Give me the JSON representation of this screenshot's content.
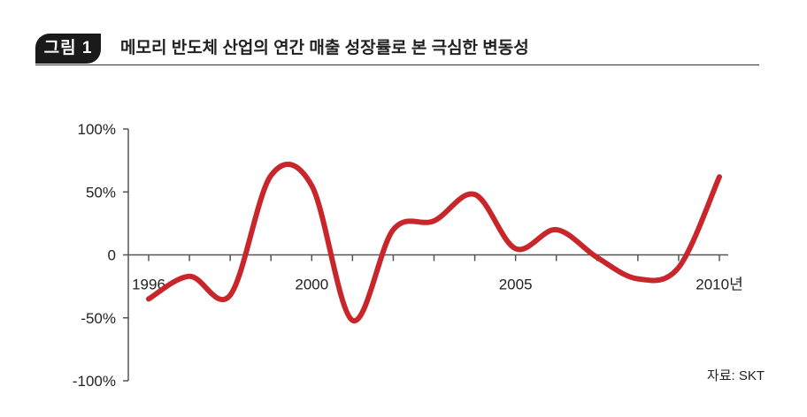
{
  "figure": {
    "label": "그림 1",
    "title": "메모리 반도체 산업의 연간 매출 성장률로 본 극심한 변동성"
  },
  "source": "자료: SKT",
  "chart_data": {
    "type": "line",
    "title": "",
    "xlabel": "",
    "ylabel": "",
    "x_tick_labels": [
      {
        "year": 1996,
        "label": "1996"
      },
      {
        "year": 2000,
        "label": "2000"
      },
      {
        "year": 2005,
        "label": "2005"
      },
      {
        "year": 2010,
        "label": "2010년"
      }
    ],
    "y_ticks": [
      {
        "value": 100,
        "label": "100%"
      },
      {
        "value": 50,
        "label": "50%"
      },
      {
        "value": 0,
        "label": "0"
      },
      {
        "value": -50,
        "label": "-50%"
      },
      {
        "value": -100,
        "label": "-100%"
      }
    ],
    "xlim": [
      1995.5,
      2011
    ],
    "ylim": [
      -100,
      100
    ],
    "grid": false,
    "line_color": "#c8262b",
    "series": [
      {
        "x": [
          1996,
          1997,
          1998,
          1999,
          2000,
          2001,
          2002,
          2003,
          2004,
          2005,
          2006,
          2007,
          2008,
          2009,
          2010
        ],
        "values": [
          -35,
          -17,
          -32,
          63,
          55,
          -52,
          20,
          27,
          48,
          5,
          20,
          -2,
          -19,
          -10,
          62
        ]
      }
    ]
  }
}
